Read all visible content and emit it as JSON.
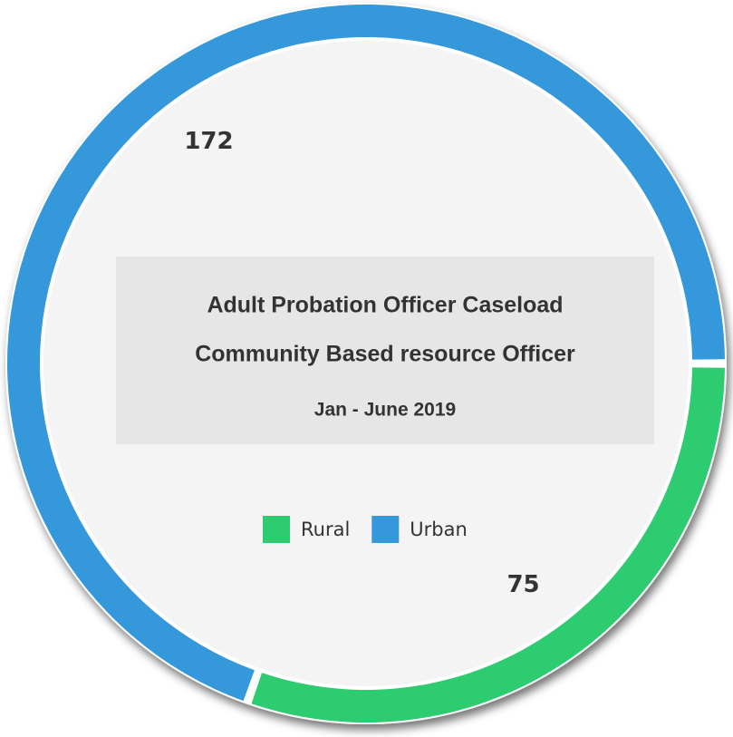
{
  "chart_data": {
    "type": "donut",
    "title": "Adult Probation Officer Caseload",
    "subtitle": [
      "Community Based resource Officer",
      "Jan - June 2019"
    ],
    "categories": [
      "Rural",
      "Urban"
    ],
    "values": [
      75,
      172
    ],
    "colors": [
      "#2ecc71",
      "#3498db"
    ],
    "legend": "bottom"
  }
}
